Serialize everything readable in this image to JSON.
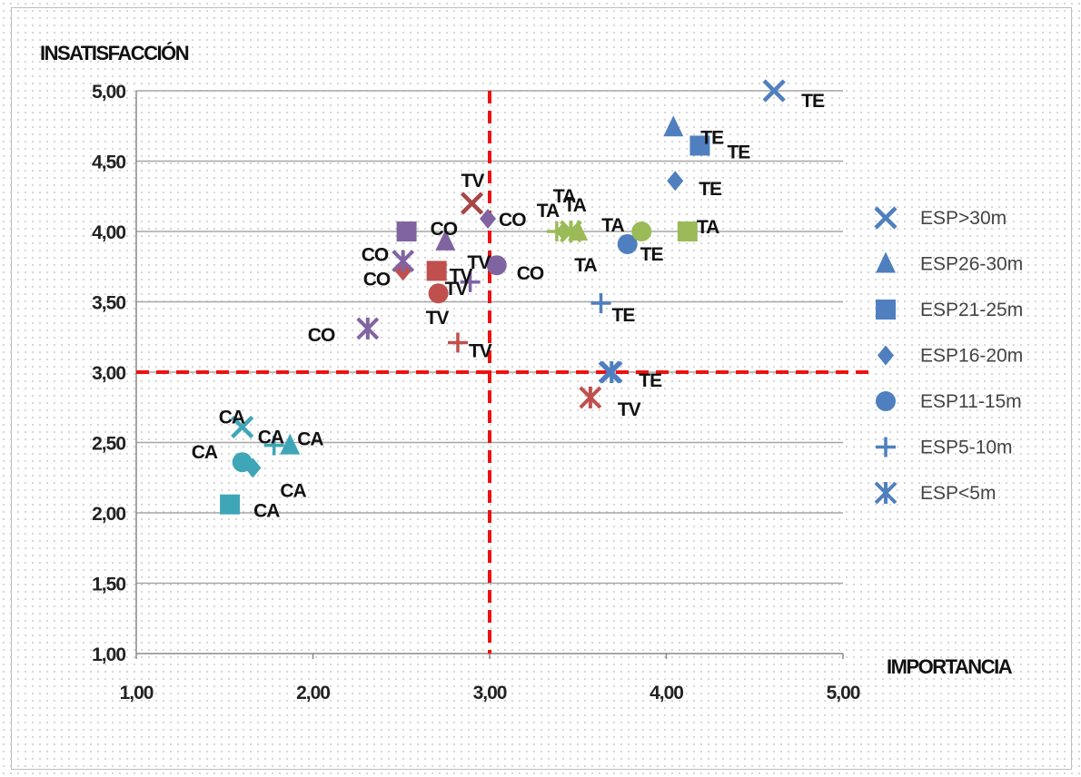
{
  "chart_data": {
    "type": "scatter",
    "title": "",
    "ylabel": "INSATISFACCIÓN",
    "xlabel": "IMPORTANCIA",
    "xlim": [
      1,
      5
    ],
    "ylim": [
      1,
      5
    ],
    "x_ticks": [
      "1,00",
      "2,00",
      "3,00",
      "4,00",
      "5,00"
    ],
    "y_ticks": [
      "5,00",
      "4,50",
      "4,00",
      "3,50",
      "3,00",
      "2,50",
      "2,00",
      "1,50",
      "1,00"
    ],
    "grid": "horizontal",
    "reference_lines": [
      {
        "axis": "x",
        "value": 3.0,
        "color": "#ee1111",
        "style": "dashed"
      },
      {
        "axis": "y",
        "value": 3.0,
        "color": "#ee1111",
        "style": "dashed"
      }
    ],
    "legend": {
      "placement": "right"
    },
    "series": [
      {
        "name": "ESP>30m",
        "marker": "x",
        "points": [
          {
            "x": 4.61,
            "y": 5.0,
            "label": "TE",
            "color": "#4f7fbf"
          },
          {
            "x": 2.9,
            "y": 4.2,
            "label": "TV",
            "color": "#a84646"
          },
          {
            "x": 3.68,
            "y": 3.0,
            "label": "TE",
            "color": "#4f7fbf"
          },
          {
            "x": 1.6,
            "y": 2.61,
            "label": "CA",
            "color": "#3fa6b8"
          }
        ]
      },
      {
        "name": "ESP26-30m",
        "marker": "triangle",
        "points": [
          {
            "x": 4.04,
            "y": 4.74,
            "label": "TE",
            "color": "#4f7fbf"
          },
          {
            "x": 2.75,
            "y": 3.93,
            "label": "TV",
            "color": "#8064a2"
          },
          {
            "x": 3.5,
            "y": 4.0,
            "label": "TA",
            "color": "#9bbb59"
          },
          {
            "x": 1.87,
            "y": 2.48,
            "label": "CA",
            "color": "#3fa6b8"
          }
        ]
      },
      {
        "name": "ESP21-25m",
        "marker": "square",
        "points": [
          {
            "x": 4.19,
            "y": 4.61,
            "label": "TE",
            "color": "#4f7fbf"
          },
          {
            "x": 2.53,
            "y": 4.0,
            "label": "CO",
            "color": "#8064a2"
          },
          {
            "x": 2.7,
            "y": 3.72,
            "label": "TV",
            "color": "#c0504d"
          },
          {
            "x": 4.12,
            "y": 4.0,
            "label": "TA",
            "color": "#9bbb59"
          },
          {
            "x": 1.53,
            "y": 2.06,
            "label": "CA",
            "color": "#3fa6b8"
          }
        ]
      },
      {
        "name": "ESP16-20m",
        "marker": "diamond",
        "points": [
          {
            "x": 4.05,
            "y": 4.36,
            "label": "TE",
            "color": "#4f7fbf"
          },
          {
            "x": 2.99,
            "y": 4.09,
            "label": "CO",
            "color": "#8064a2"
          },
          {
            "x": 2.51,
            "y": 3.72,
            "label": "CO",
            "color": "#c0504d"
          },
          {
            "x": 3.42,
            "y": 4.0,
            "label": "TA",
            "color": "#9bbb59"
          },
          {
            "x": 1.66,
            "y": 2.32,
            "label": "CA",
            "color": "#3fa6b8"
          }
        ]
      },
      {
        "name": "ESP11-15m",
        "marker": "circle",
        "points": [
          {
            "x": 3.78,
            "y": 3.91,
            "label": "TE",
            "color": "#4f7fbf"
          },
          {
            "x": 3.04,
            "y": 3.76,
            "label": "CO",
            "color": "#8064a2"
          },
          {
            "x": 2.71,
            "y": 3.56,
            "label": "TV",
            "color": "#c0504d"
          },
          {
            "x": 3.86,
            "y": 4.0,
            "label": "TA",
            "color": "#9bbb59"
          },
          {
            "x": 1.6,
            "y": 2.36,
            "label": "CA",
            "color": "#3fa6b8"
          }
        ]
      },
      {
        "name": "ESP5-10m",
        "marker": "plus",
        "points": [
          {
            "x": 3.63,
            "y": 3.49,
            "label": "TE",
            "color": "#4f7fbf"
          },
          {
            "x": 2.89,
            "y": 3.64,
            "label": "TV",
            "color": "#8064a2"
          },
          {
            "x": 2.82,
            "y": 3.21,
            "label": "TV",
            "color": "#c0504d"
          },
          {
            "x": 3.38,
            "y": 4.0,
            "label": "TA",
            "color": "#9bbb59"
          },
          {
            "x": 1.78,
            "y": 2.48,
            "label": "CA",
            "color": "#3fa6b8"
          }
        ]
      },
      {
        "name": "ESP<5m",
        "marker": "asterisk",
        "points": [
          {
            "x": 3.69,
            "y": 3.0,
            "label": "",
            "color": "#4f7fbf"
          },
          {
            "x": 2.51,
            "y": 3.79,
            "label": "CO",
            "color": "#8064a2"
          },
          {
            "x": 2.31,
            "y": 3.31,
            "label": "CO",
            "color": "#8064a2"
          },
          {
            "x": 3.57,
            "y": 2.82,
            "label": "TV",
            "color": "#c0504d"
          },
          {
            "x": 3.46,
            "y": 4.0,
            "label": "TA",
            "color": "#9bbb59"
          }
        ]
      }
    ]
  },
  "legend_color": "#4f7fbf",
  "grid_color": "#a6a6a6",
  "axis_color": "#888888"
}
